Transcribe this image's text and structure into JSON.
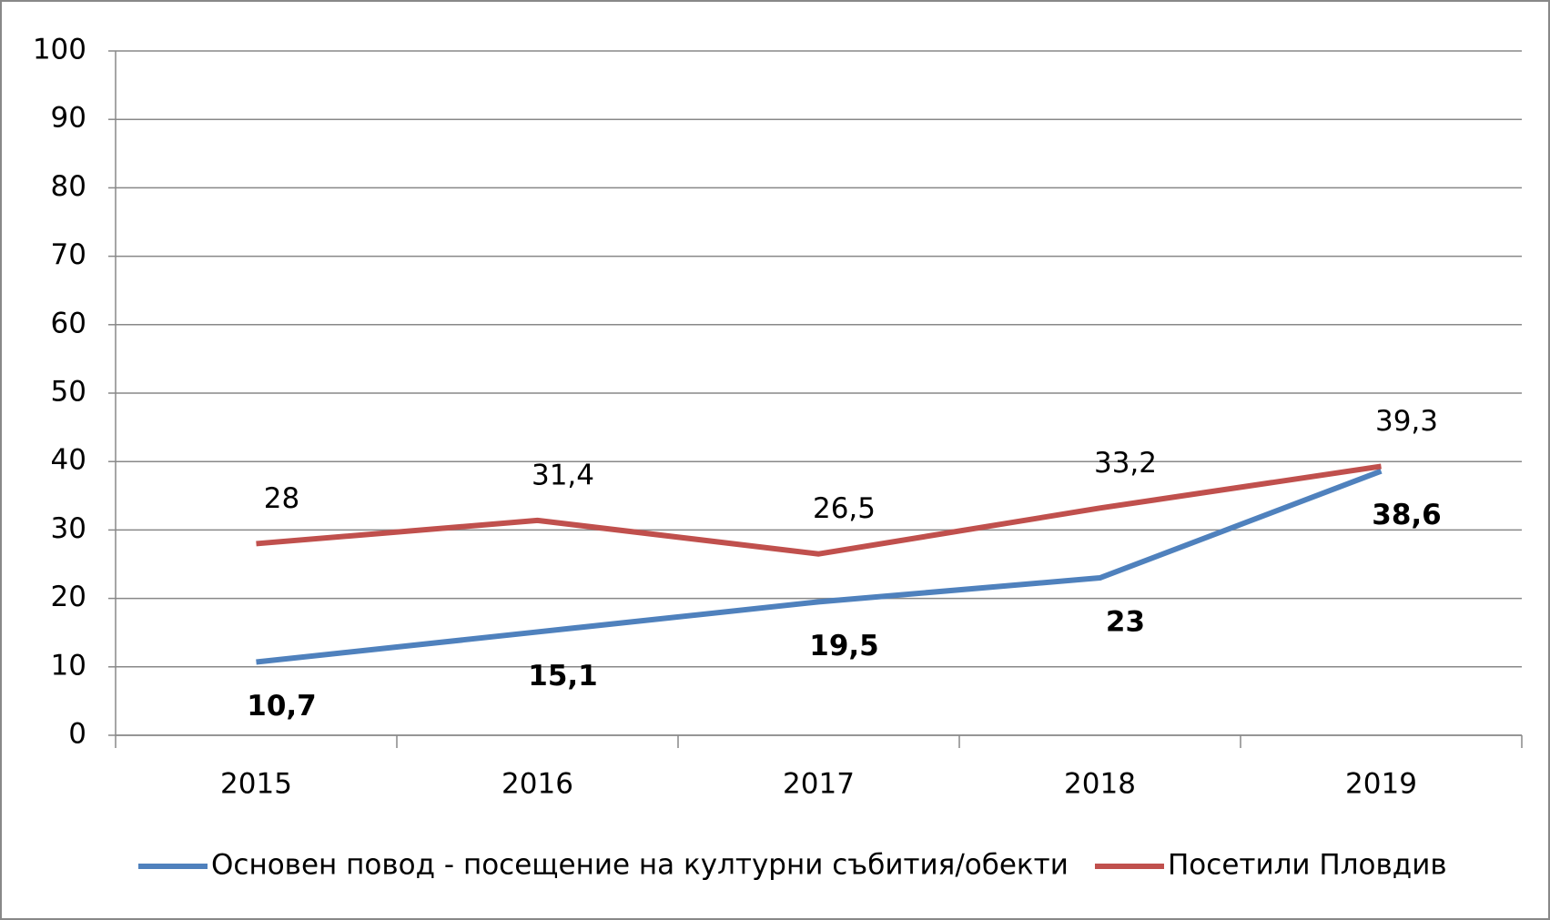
{
  "chart_data": {
    "type": "line",
    "categories": [
      "2015",
      "2016",
      "2017",
      "2018",
      "2019"
    ],
    "series": [
      {
        "name": "Основен повод - посещение на културни събития/обекти",
        "color": "#4f81bd",
        "values": [
          10.7,
          15.1,
          19.5,
          23,
          38.6
        ],
        "value_labels": [
          "10,7",
          "15,1",
          "19,5",
          "23",
          "38,6"
        ]
      },
      {
        "name": "Посетили Пловдив",
        "color": "#c0504d",
        "values": [
          28,
          31.4,
          26.5,
          33.2,
          39.3
        ],
        "value_labels": [
          "28",
          "31,4",
          "26,5",
          "33,2",
          "39,3"
        ]
      }
    ],
    "ylim": [
      0,
      100
    ],
    "yticks": [
      0,
      10,
      20,
      30,
      40,
      50,
      60,
      70,
      80,
      90,
      100
    ],
    "grid": true,
    "legend": "bottom"
  }
}
